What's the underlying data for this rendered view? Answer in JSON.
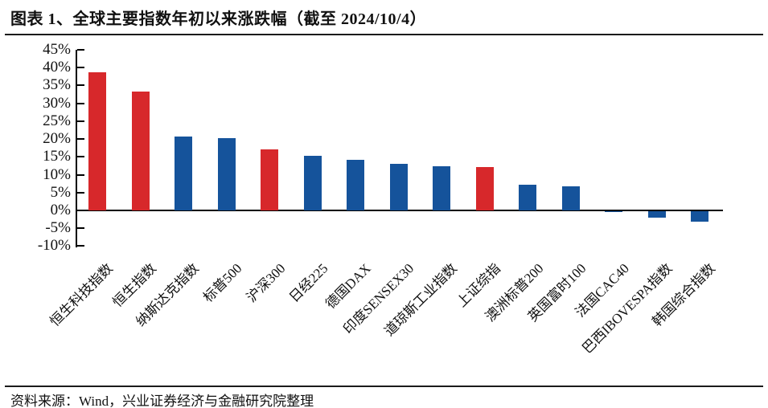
{
  "source_note": "资料来源：Wind，兴业证券经济与金融研究院整理",
  "colors": {
    "highlight_red": "#d7282b",
    "bar_blue": "#15539b",
    "text": "#111111",
    "axis": "#000000"
  },
  "chart_data": {
    "type": "bar",
    "title": "图表 1、全球主要指数年初以来涨跌幅（截至 2024/10/4）",
    "categories": [
      "恒生科技指数",
      "恒生指数",
      "纳斯达克指数",
      "标普500",
      "沪深300",
      "日经225",
      "德国DAX",
      "印度SENSEX30",
      "道琼斯工业指数",
      "上证综指",
      "澳洲标普200",
      "英国富时100",
      "法国CAC40",
      "巴西IBOVESPA指数",
      "韩国综合指数"
    ],
    "values": [
      38.8,
      33.2,
      20.7,
      20.3,
      17.1,
      15.4,
      14.1,
      13.0,
      12.3,
      12.2,
      7.3,
      6.8,
      -0.3,
      -1.9,
      -3.0
    ],
    "bar_colors": [
      "red",
      "red",
      "blue",
      "blue",
      "red",
      "blue",
      "blue",
      "blue",
      "blue",
      "red",
      "blue",
      "blue",
      "blue",
      "blue",
      "blue"
    ],
    "palette": {
      "red": "#d7282b",
      "blue": "#15539b"
    },
    "xlabel": "",
    "ylabel": "",
    "ylim": [
      -10,
      45
    ],
    "yticks": [
      45,
      40,
      35,
      30,
      25,
      20,
      15,
      10,
      5,
      0,
      -5,
      -10
    ],
    "ytick_labels": [
      "45%",
      "40%",
      "35%",
      "30%",
      "25%",
      "20%",
      "15%",
      "10%",
      "5%",
      "0%",
      "-5%",
      "-10%"
    ],
    "grid": false,
    "legend_position": "none"
  }
}
